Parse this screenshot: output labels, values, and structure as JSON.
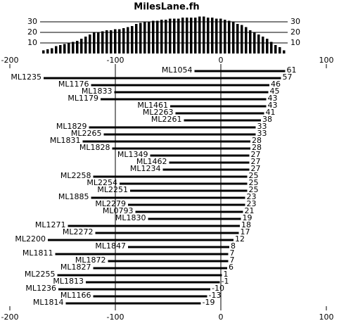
{
  "chart_data": [
    {
      "type": "histogram",
      "title": "MilesLane.fh",
      "color": "#000000",
      "bins": [
        -170,
        -166,
        -162,
        -158,
        -154,
        -150,
        -146,
        -142,
        -138,
        -134,
        -130,
        -126,
        -122,
        -118,
        -114,
        -110,
        -106,
        -102,
        -98,
        -94,
        -90,
        -86,
        -82,
        -78,
        -74,
        -70,
        -66,
        -62,
        -58,
        -54,
        -50,
        -46,
        -42,
        -38,
        -34,
        -30,
        -26,
        -22,
        -18,
        -14,
        -10,
        -6,
        -2,
        2,
        6,
        10,
        14,
        18,
        22,
        26,
        30,
        34,
        38,
        42,
        46,
        50,
        54,
        58,
        62
      ],
      "values": [
        3,
        4,
        5,
        7,
        8,
        9,
        10,
        11,
        12,
        14,
        16,
        18,
        20,
        20,
        21,
        22,
        22,
        23,
        23,
        24,
        25,
        26,
        28,
        29,
        30,
        30,
        31,
        31,
        32,
        32,
        33,
        33,
        33,
        34,
        34,
        34,
        34,
        35,
        35,
        34,
        34,
        33,
        33,
        32,
        31,
        30,
        28,
        27,
        25,
        22,
        20,
        18,
        16,
        14,
        11,
        8,
        6,
        3
      ],
      "xlim": [
        -200,
        100
      ],
      "ylim": [
        0,
        35
      ],
      "yticks": [
        10,
        20,
        30
      ],
      "grid": true
    },
    {
      "type": "range-bar",
      "color": "#000000",
      "xlim": [
        -200,
        100
      ],
      "xticks": [
        -200,
        -100,
        0,
        100
      ],
      "categories": [
        "ML1054",
        "ML1235",
        "ML1176",
        "ML1833",
        "ML1179",
        "ML1461",
        "ML2263",
        "ML2261",
        "ML1829",
        "ML2265",
        "ML1831",
        "ML1828",
        "ML1349",
        "ML1462",
        "ML1234",
        "ML2258",
        "ML2254",
        "ML2251",
        "ML1885",
        "ML2279",
        "ML0793",
        "ML1830",
        "ML1271",
        "ML2272",
        "ML2200",
        "ML1847",
        "ML1811",
        "ML1872",
        "ML1827",
        "ML2255",
        "ML1813",
        "ML1236",
        "ML1166",
        "ML1814"
      ],
      "starts": [
        -25,
        -168,
        -123,
        -101,
        -114,
        -48,
        -43,
        -35,
        -125,
        -111,
        -131,
        -103,
        -67,
        -49,
        -55,
        -121,
        -96,
        -86,
        -123,
        -88,
        -81,
        -69,
        -145,
        -119,
        -164,
        -88,
        -157,
        -107,
        -121,
        -155,
        -128,
        -154,
        -121,
        -147
      ],
      "values": [
        61,
        57,
        46,
        45,
        43,
        43,
        41,
        38,
        33,
        33,
        28,
        28,
        27,
        27,
        27,
        25,
        25,
        25,
        23,
        23,
        21,
        19,
        18,
        17,
        12,
        8,
        7,
        7,
        6,
        1,
        -1,
        -10,
        -13,
        -19
      ]
    }
  ]
}
